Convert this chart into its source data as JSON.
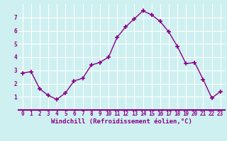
{
  "x": [
    0,
    1,
    2,
    3,
    4,
    5,
    6,
    7,
    8,
    9,
    10,
    11,
    12,
    13,
    14,
    15,
    16,
    17,
    18,
    19,
    20,
    21,
    22,
    23
  ],
  "y": [
    2.8,
    2.9,
    1.6,
    1.1,
    0.8,
    1.3,
    2.2,
    2.4,
    3.4,
    3.6,
    4.0,
    5.5,
    6.3,
    6.9,
    7.5,
    7.2,
    6.7,
    5.9,
    4.8,
    3.5,
    3.6,
    2.3,
    0.9,
    1.4
  ],
  "line_color": "#880088",
  "marker": "+",
  "marker_size": 4,
  "bg_color": "#cff0f0",
  "grid_color": "#ffffff",
  "xlabel": "Windchill (Refroidissement éolien,°C)",
  "xlabel_color": "#880088",
  "tick_color": "#880088",
  "axis_color": "#880088",
  "ylim": [
    0,
    8
  ],
  "xlim": [
    -0.5,
    23.5
  ],
  "yticks": [
    1,
    2,
    3,
    4,
    5,
    6,
    7
  ],
  "xticks": [
    0,
    1,
    2,
    3,
    4,
    5,
    6,
    7,
    8,
    9,
    10,
    11,
    12,
    13,
    14,
    15,
    16,
    17,
    18,
    19,
    20,
    21,
    22,
    23
  ],
  "tick_fontsize": 5.5,
  "xlabel_fontsize": 6.5,
  "linewidth": 1.0,
  "markeredgewidth": 1.2
}
